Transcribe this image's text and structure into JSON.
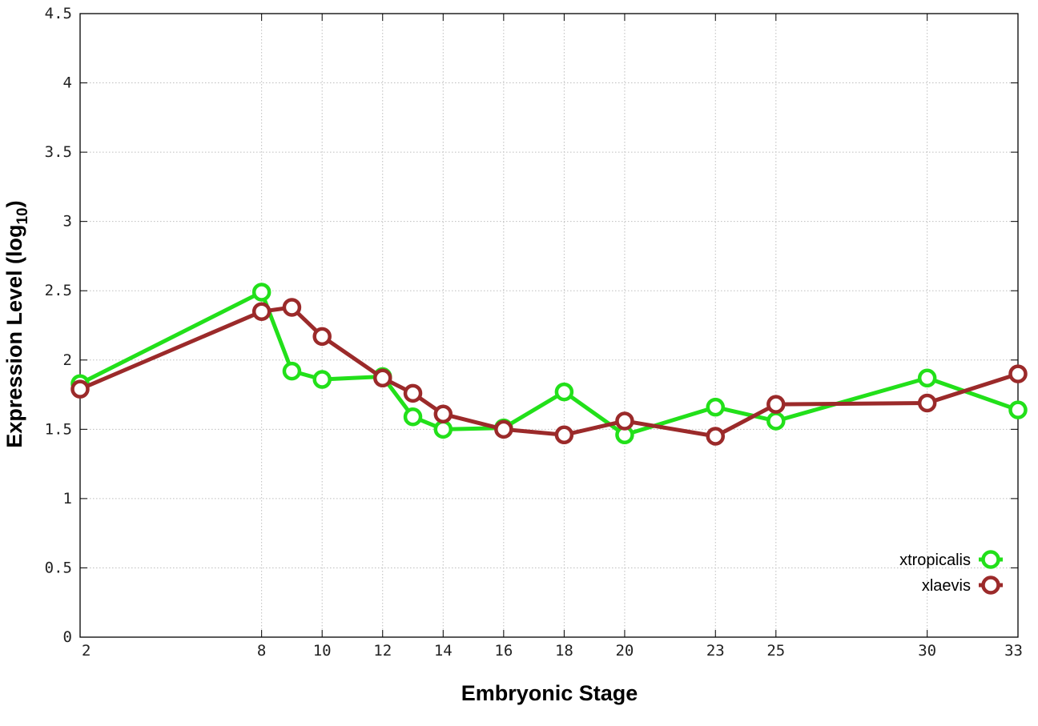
{
  "chart_data": {
    "type": "line",
    "xlabel": "Embryonic Stage",
    "ylabel": "Expression Level (log",
    "ylabel_subscript": "10",
    "ylabel_close": ")",
    "ylim": [
      0,
      4.5
    ],
    "xlim": [
      2,
      33
    ],
    "grid": true,
    "legend_position": "bottom-right",
    "x_ticks": [
      "2",
      "8",
      "10",
      "12",
      "14",
      "16",
      "18",
      "20",
      "23",
      "25",
      "30",
      "33"
    ],
    "y_ticks": [
      "0",
      "0.5",
      "1",
      "1.5",
      "2",
      "2.5",
      "3",
      "3.5",
      "4",
      "4.5"
    ],
    "x": [
      2,
      8,
      9,
      10,
      12,
      13,
      14,
      16,
      18,
      20,
      23,
      25,
      30,
      33
    ],
    "series": [
      {
        "name": "xtropicalis",
        "color": "#22e01a",
        "values": [
          1.83,
          2.49,
          1.92,
          1.86,
          1.88,
          1.59,
          1.5,
          1.51,
          1.77,
          1.46,
          1.66,
          1.56,
          1.87,
          1.64
        ]
      },
      {
        "name": "xlaevis",
        "color": "#9b2a2a",
        "values": [
          1.79,
          2.35,
          2.38,
          2.17,
          1.87,
          1.76,
          1.61,
          1.5,
          1.46,
          1.56,
          1.45,
          1.68,
          1.69,
          1.9
        ]
      }
    ]
  }
}
